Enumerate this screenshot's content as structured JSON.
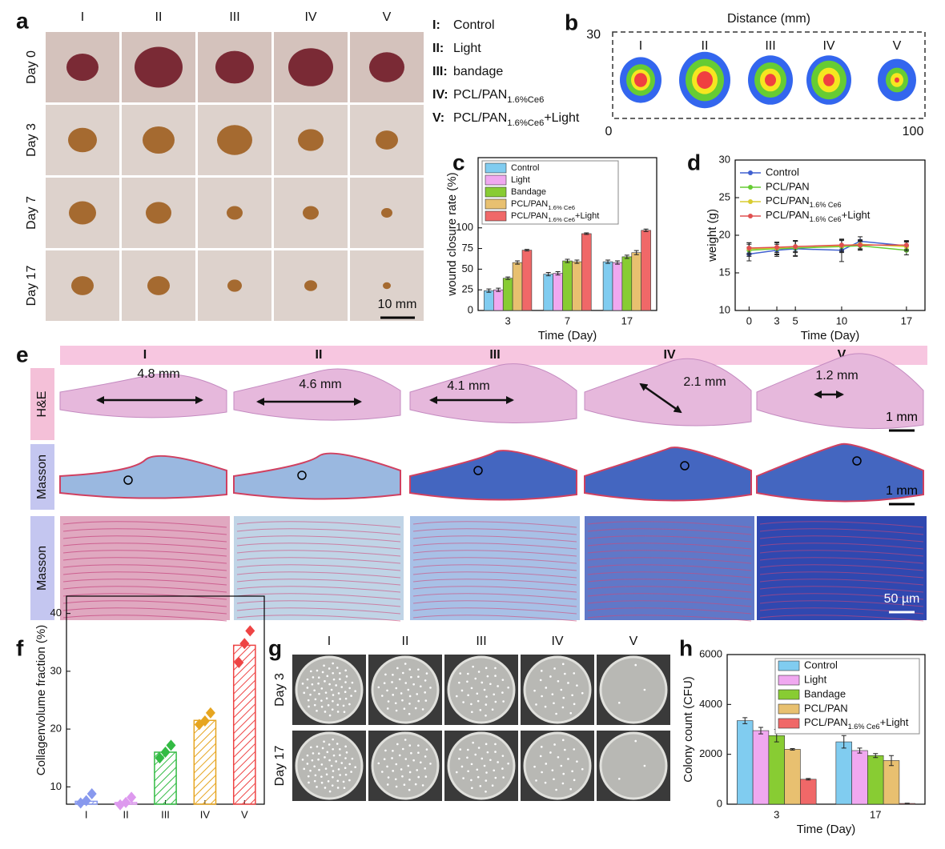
{
  "panel_labels": [
    "a",
    "b",
    "c",
    "d",
    "e",
    "f",
    "g",
    "h"
  ],
  "panel_a": {
    "columns": [
      "I",
      "II",
      "III",
      "IV",
      "V"
    ],
    "rows": [
      "Day 0",
      "Day 3",
      "Day 7",
      "Day 17"
    ],
    "scale_bar": "10 mm",
    "legend": [
      {
        "key": "I:",
        "text": "Control"
      },
      {
        "key": "II:",
        "text": "Light"
      },
      {
        "key": "III:",
        "text": "bandage"
      },
      {
        "key": "IV:",
        "text": "PCL/PAN1.6%Ce6"
      },
      {
        "key": "V:",
        "text": "PCL/PAN1.6%Ce6+Light"
      }
    ]
  },
  "panel_b": {
    "title": "Distance (mm)",
    "y_max": "30",
    "x_min": "0",
    "x_max": "100",
    "columns": [
      "I",
      "II",
      "III",
      "IV",
      "V"
    ]
  },
  "panel_e": {
    "columns": [
      "I",
      "II",
      "III",
      "IV",
      "V"
    ],
    "rows": [
      "H&E",
      "Masson",
      "Masson"
    ],
    "measurements": [
      "4.8 mm",
      "4.6 mm",
      "4.1 mm",
      "2.1 mm",
      "1.2 mm"
    ],
    "scale_bars": [
      "1 mm",
      "1 mm",
      "50 µm"
    ]
  },
  "panel_g": {
    "columns": [
      "I",
      "II",
      "III",
      "IV",
      "V"
    ],
    "rows": [
      "Day 3",
      "Day 17"
    ]
  },
  "chart_data": [
    {
      "type": "bar",
      "y_label": "wound closure rate (%)",
      "x_label": "Time (Day)",
      "categories": [
        "3",
        "7",
        "17"
      ],
      "ylim": [
        0,
        185
      ],
      "yticks": [
        0,
        25,
        50,
        75,
        100
      ],
      "legend": "upper left",
      "series": [
        {
          "name": "Control",
          "color": "#80ccf0",
          "values": [
            24,
            44,
            59
          ],
          "errors": [
            2,
            2,
            2
          ]
        },
        {
          "name": "Light",
          "color": "#f0a8f0",
          "values": [
            25,
            45,
            58
          ],
          "errors": [
            2,
            2,
            2
          ]
        },
        {
          "name": "Bandage",
          "color": "#88cc33",
          "values": [
            39,
            60,
            65
          ],
          "errors": [
            1.5,
            2,
            2
          ]
        },
        {
          "name": "PCL/PAN1.6% Ce6",
          "color": "#e8c070",
          "values": [
            58,
            59,
            70
          ],
          "errors": [
            2,
            2,
            2.5
          ]
        },
        {
          "name": "PCL/PAN1.6% Ce6+Light",
          "color": "#f06868",
          "values": [
            73,
            93,
            97
          ],
          "errors": [
            1,
            1,
            1.5
          ]
        }
      ]
    },
    {
      "type": "line",
      "y_label": "weight (g)",
      "x_label": "Time (Day)",
      "x": [
        0,
        3,
        5,
        10,
        12,
        17
      ],
      "xlim": [
        -1.5,
        19
      ],
      "xticks": [
        0,
        3,
        5,
        10,
        17
      ],
      "ylim": [
        10,
        30
      ],
      "yticks": [
        10,
        15,
        20,
        25,
        30
      ],
      "legend": "upper left",
      "series": [
        {
          "name": "Control",
          "color": "#4060d0",
          "values": [
            17.5,
            18,
            18.2,
            18,
            19.2,
            18.6
          ],
          "errors": [
            0.9,
            0.8,
            1.0,
            1.5,
            0.6,
            0.6
          ]
        },
        {
          "name": "PCL/PAN",
          "color": "#66cc33",
          "values": [
            18,
            18.2,
            18.3,
            18.5,
            18.6,
            18
          ],
          "errors": [
            0.8,
            0.8,
            1.0,
            0.8,
            0.6,
            0.6
          ]
        },
        {
          "name": "PCL/PAN1.6% Ce6",
          "color": "#d8cc30",
          "values": [
            18.2,
            18.3,
            18.5,
            18.6,
            18.8,
            18.5
          ],
          "errors": [
            0.8,
            0.8,
            0.8,
            0.8,
            0.6,
            0.6
          ]
        },
        {
          "name": "PCL/PAN1.6% Ce6+Light",
          "color": "#e05050",
          "values": [
            18.3,
            18.4,
            18.5,
            18.7,
            18.7,
            18.7
          ],
          "errors": [
            0.7,
            0.7,
            0.7,
            0.7,
            0.6,
            0.6
          ]
        }
      ]
    },
    {
      "type": "bar",
      "y_label": "Collagenvolume fraction (%)",
      "categories": [
        "I",
        "II",
        "III",
        "IV",
        "V"
      ],
      "ylim": [
        7,
        43
      ],
      "yticks": [
        10,
        20,
        30,
        40
      ],
      "values": [
        7.5,
        7.3,
        16,
        21.5,
        34.5
      ],
      "colors": [
        "#8899ee",
        "#dd99ee",
        "#33bb44",
        "#e6a520",
        "#ee4444"
      ],
      "points": [
        [
          7.2,
          7.6,
          8.8
        ],
        [
          6.9,
          7.3,
          8.2
        ],
        [
          15,
          16,
          17.2
        ],
        [
          20.8,
          21.4,
          22.8
        ],
        [
          31.5,
          34.8,
          37
        ]
      ]
    },
    {
      "type": "bar",
      "y_label": "Colony count (CFU)",
      "x_label": "Time (Day)",
      "categories": [
        "3",
        "17"
      ],
      "ylim": [
        0,
        6000
      ],
      "yticks": [
        0,
        2000,
        4000,
        6000
      ],
      "legend": "upper right",
      "series": [
        {
          "name": "Control",
          "color": "#80ccf0",
          "values": [
            3350,
            2500
          ],
          "errors": [
            120,
            250
          ]
        },
        {
          "name": "Light",
          "color": "#f0a8f0",
          "values": [
            2950,
            2150
          ],
          "errors": [
            130,
            100
          ]
        },
        {
          "name": "Bandage",
          "color": "#88cc33",
          "values": [
            2750,
            1950
          ],
          "errors": [
            250,
            80
          ]
        },
        {
          "name": "PCL/PAN",
          "color": "#e8c070",
          "values": [
            2200,
            1750
          ],
          "errors": [
            30,
            200
          ]
        },
        {
          "name": "PCL/PAN1.6% Ce6+Light",
          "color": "#f06868",
          "values": [
            1000,
            30
          ],
          "errors": [
            30,
            10
          ]
        }
      ]
    }
  ]
}
